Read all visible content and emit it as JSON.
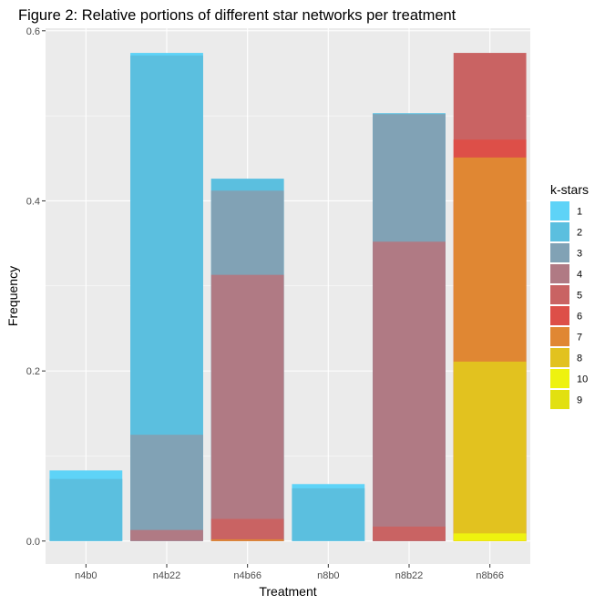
{
  "chart_data": {
    "type": "bar",
    "title": "Figure 2: Relative portions of different star networks per treatment",
    "xlabel": "Treatment",
    "ylabel": "Frequency",
    "ylim": [
      -0.027,
      0.603
    ],
    "yticks": [
      "0.0",
      "0.2",
      "0.4",
      "0.6"
    ],
    "ytick_values": [
      0,
      0.2,
      0.4,
      0.6
    ],
    "grid": true,
    "legend_position": "right",
    "legend_title": "k-stars",
    "categories": [
      "n4b0",
      "n4b22",
      "n4b66",
      "n8b0",
      "n8b22",
      "n8b66"
    ],
    "series": [
      {
        "name": "1",
        "color": "#5ed3f7",
        "values": [
          0.083,
          0.574,
          0.426,
          0.067,
          0.503,
          0.0
        ]
      },
      {
        "name": "2",
        "color": "#5bbfdf",
        "values": [
          0.073,
          0.571,
          0.426,
          0.062,
          0.503,
          0.0
        ]
      },
      {
        "name": "3",
        "color": "#81a2b5",
        "values": [
          0.0,
          0.125,
          0.412,
          0.0,
          0.502,
          0.0
        ]
      },
      {
        "name": "4",
        "color": "#b07a84",
        "values": [
          0.0,
          0.013,
          0.313,
          0.0,
          0.352,
          0.0
        ]
      },
      {
        "name": "5",
        "color": "#c96363",
        "values": [
          0.0,
          0.0,
          0.026,
          0.0,
          0.017,
          0.574
        ]
      },
      {
        "name": "6",
        "color": "#dd4f48",
        "values": [
          0.0,
          0.0,
          0.0,
          0.0,
          0.0,
          0.472
        ]
      },
      {
        "name": "7",
        "color": "#e08733",
        "values": [
          0.0,
          0.0,
          0.002,
          0.0,
          0.0,
          0.451
        ]
      },
      {
        "name": "8",
        "color": "#e2c21f",
        "values": [
          0.0,
          0.0,
          0.0,
          0.0,
          0.0,
          0.211
        ]
      },
      {
        "name": "10",
        "color": "#eef20f",
        "values": [
          0.0,
          0.0,
          0.0,
          0.0,
          0.0,
          0.009
        ]
      },
      {
        "name": "9",
        "color": "#e2e010",
        "values": [
          0.0,
          0.0,
          0.0,
          0.0,
          0.0,
          0.0
        ]
      }
    ]
  }
}
